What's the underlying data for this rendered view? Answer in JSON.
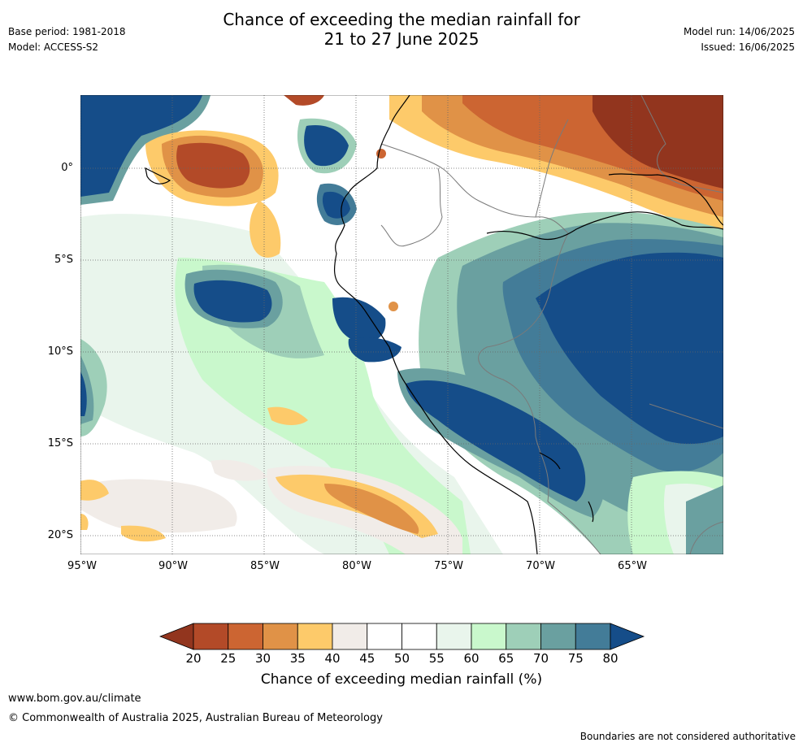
{
  "header": {
    "title_line1": "Chance of exceeding the median rainfall for",
    "title_line2": "21 to 27 June 2025",
    "base_period": "Base period: 1981-2018",
    "model": "Model: ACCESS-S2",
    "model_run": "Model run: 14/06/2025",
    "issued": "Issued: 16/06/2025"
  },
  "map": {
    "lat_labels": [
      "0°",
      "5°S",
      "10°S",
      "15°S",
      "20°S"
    ],
    "lon_labels": [
      "95°W",
      "90°W",
      "85°W",
      "80°W",
      "75°W",
      "70°W",
      "65°W"
    ]
  },
  "colorbar": {
    "ticks": [
      "20",
      "25",
      "30",
      "35",
      "40",
      "45",
      "50",
      "55",
      "60",
      "65",
      "70",
      "75",
      "80"
    ],
    "colors": [
      "#92351e",
      "#b34a28",
      "#cc6532",
      "#e09247",
      "#fdca6a",
      "#f1ece8",
      "#ffffff",
      "#ffffff",
      "#e9f5ec",
      "#c9f8cc",
      "#9ecfb8",
      "#6aa0a0",
      "#437c98",
      "#154d89"
    ],
    "title": "Chance of exceeding median rainfall (%)"
  },
  "footer": {
    "website": "www.bom.gov.au/climate",
    "copyright": "© Commonwealth of Australia 2025, Australian Bureau of Meteorology",
    "disclaimer": "Boundaries are not considered authoritative"
  }
}
